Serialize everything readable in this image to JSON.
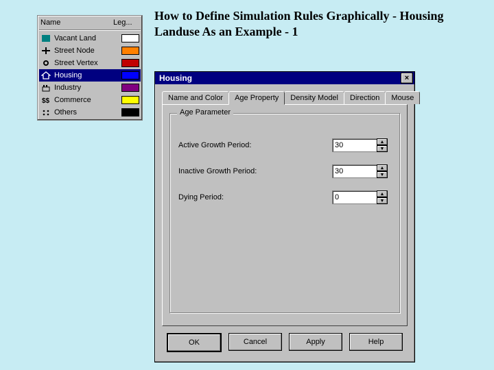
{
  "heading": "How to Define Simulation Rules Graphically - Housing Landuse As an Example - 1",
  "legend": {
    "header_name": "Name",
    "header_legend": "Leg...",
    "items": [
      {
        "icon_name": "vacant-icon",
        "icon_color": "#008080",
        "label": "Vacant Land",
        "swatch": "#ffffff",
        "selected": false
      },
      {
        "icon_name": "node-icon",
        "icon_color": "#000000",
        "label": "Street Node",
        "swatch": "#ff8000",
        "selected": false
      },
      {
        "icon_name": "vertex-icon",
        "icon_color": "#000000",
        "label": "Street Vertex",
        "swatch": "#c00000",
        "selected": false
      },
      {
        "icon_name": "housing-icon",
        "icon_color": "#000000",
        "label": "Housing",
        "swatch": "#0000ff",
        "selected": true
      },
      {
        "icon_name": "industry-icon",
        "icon_color": "#000000",
        "label": "Industry",
        "swatch": "#800080",
        "selected": false
      },
      {
        "icon_name": "commerce-icon",
        "icon_color": "#000000",
        "label": "Commerce",
        "swatch": "#ffff00",
        "selected": false
      },
      {
        "icon_name": "others-icon",
        "icon_color": "#000000",
        "label": "Others",
        "swatch": "#000000",
        "selected": false
      }
    ]
  },
  "dialog": {
    "title": "Housing",
    "tabs": [
      "Name and Color",
      "Age Property",
      "Density Model",
      "Direction",
      "Mouse"
    ],
    "active_tab_index": 1,
    "group_title": "Age Parameter",
    "fields": {
      "active_label": "Active Growth Period:",
      "active_value": "30",
      "inactive_label": "Inactive Growth Period:",
      "inactive_value": "30",
      "dying_label": "Dying Period:",
      "dying_value": "0"
    },
    "buttons": {
      "ok": "OK",
      "cancel": "Cancel",
      "apply": "Apply",
      "help": "Help"
    }
  },
  "colors": {
    "page_bg": "#c7ecf3",
    "win_bg": "#c0c0c0",
    "titlebar": "#000080"
  }
}
